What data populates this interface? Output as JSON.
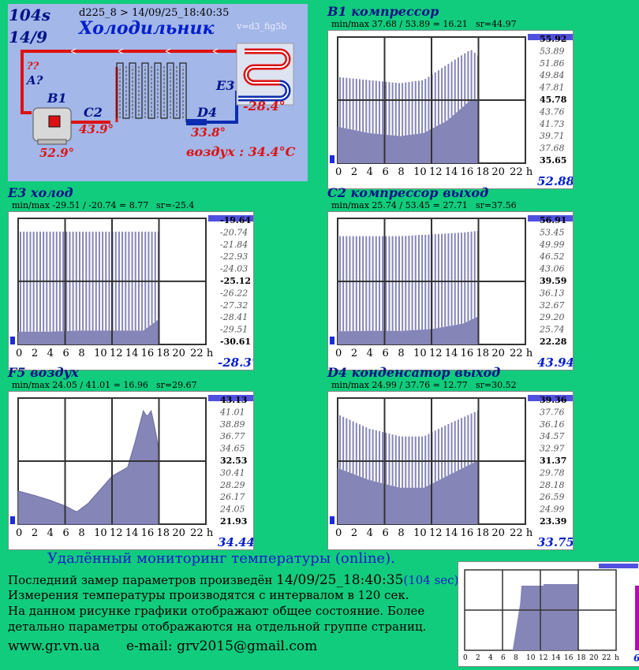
{
  "diagram": {
    "counter": "104s",
    "date": "14/9",
    "device": "d225_8  >  14/09/25_18:40:35",
    "title": "Холодильник",
    "version": "v=d3_fig5b",
    "unknown": "??",
    "label_a": "A?",
    "label_b1": "B1",
    "label_c2": "C2",
    "label_d4": "D4",
    "label_e3": "E3",
    "temp_b1": "52.9°",
    "temp_c2": "43.9°",
    "temp_d4": "33.8°",
    "temp_e3": "-28.4°",
    "air": "воздух : 34.4°C"
  },
  "cards": [
    {
      "title": "B1 компрессор",
      "minmax": "min/max   37.68 / 53.89 = 16.21",
      "sr": "sr=44.97",
      "scale": [
        "55.92",
        "53.89",
        "51.86",
        "49.84",
        "47.81",
        "45.78",
        "43.76",
        "41.73",
        "39.71",
        "37.68",
        "35.65"
      ],
      "current": "52.88",
      "current_color": "#001ecc"
    },
    {
      "title": "E3 холод",
      "minmax": "min/max   -29.51 / -20.74 = 8.77",
      "sr": "sr=-25.4",
      "scale": [
        "-19.64",
        "-20.74",
        "-21.84",
        "-22.93",
        "-24.03",
        "-25.12",
        "-26.22",
        "-27.32",
        "-28.41",
        "-29.51",
        "-30.61"
      ],
      "current": "-28.37",
      "current_color": "#001ecc"
    },
    {
      "title": "C2 компрессор выход",
      "minmax": "min/max   25.74 / 53.45 = 27.71",
      "sr": "sr=37.56",
      "scale": [
        "56.91",
        "53.45",
        "49.99",
        "46.52",
        "43.06",
        "39.59",
        "36.13",
        "32.67",
        "29.20",
        "25.74",
        "22.28"
      ],
      "current": "43.94",
      "current_color": "#001ecc"
    },
    {
      "title": "F5 воздух",
      "minmax": "min/max   24.05 / 41.01 = 16.96",
      "sr": "sr=29.67",
      "scale": [
        "43.13",
        "41.01",
        "38.89",
        "36.77",
        "34.65",
        "32.53",
        "30.41",
        "28.29",
        "26.17",
        "24.05",
        "21.93"
      ],
      "current": "34.44",
      "current_color": "#001ecc"
    },
    {
      "title": "D4 конденсатор выход",
      "minmax": "min/max   24.99 / 37.76 = 12.77",
      "sr": "sr=30.52",
      "scale": [
        "39.36",
        "37.76",
        "36.16",
        "34.57",
        "32.97",
        "31.37",
        "29.78",
        "28.18",
        "26.59",
        "24.99",
        "23.39"
      ],
      "current": "33.75",
      "current_color": "#001ecc"
    }
  ],
  "axis_labels": [
    "0",
    "2",
    "4",
    "6",
    "8",
    "10",
    "12",
    "14",
    "16",
    "18",
    "20",
    "22 h"
  ],
  "mini_axis_labels": [
    "0",
    "2",
    "4",
    "6",
    "8",
    "10",
    "12",
    "14",
    "16",
    "18",
    "20",
    "22",
    "h"
  ],
  "mini_current": "6",
  "footer": {
    "heading": "Удалённый мониторинг температуры (online).",
    "line1_a": "Последний замер параметров произведён ",
    "line1_b": "14/09/25_18:40:35",
    "line1_c": "(104 sec).",
    "line2": "Измерения температуры  производятся с интервалом в 120 сек.",
    "line3": "На данном рисунке графики отображают общее состояние. Более",
    "line4": "детально параметры отображаются на отдельной группе страниц.",
    "site": "www.gr.vn.ua",
    "email": "e-mail: grv2015@gmail.com"
  },
  "chart_data": [
    {
      "type": "area",
      "title": "B1 компрессор",
      "xlabel": "h",
      "ylim": [
        35.65,
        55.92
      ],
      "x_ticks": [
        0,
        2,
        4,
        6,
        8,
        10,
        12,
        14,
        16,
        18,
        20,
        22
      ],
      "series": [
        {
          "values": [
            {
              "x": 0,
              "y": [
                41.5,
                49.5
              ]
            },
            {
              "x": 4,
              "y": [
                40.5,
                49
              ]
            },
            {
              "x": 8,
              "y": [
                40,
                48.5
              ]
            },
            {
              "x": 11,
              "y": [
                40.5,
                49
              ]
            },
            {
              "x": 14,
              "y": [
                42.5,
                51.5
              ]
            },
            {
              "x": 17,
              "y": [
                45.8,
                53.9
              ]
            },
            {
              "x": 18,
              "y": [
                45.8,
                52.9
              ]
            }
          ]
        }
      ]
    },
    {
      "type": "area",
      "title": "E3 холод",
      "xlabel": "h",
      "ylim": [
        -30.61,
        -19.64
      ],
      "x_ticks": [
        0,
        2,
        4,
        6,
        8,
        10,
        12,
        14,
        16,
        18,
        20,
        22
      ],
      "series": [
        {
          "values": [
            {
              "x": 0,
              "y": [
                -29.5,
                -20.8
              ]
            },
            {
              "x": 4,
              "y": [
                -29.5,
                -20.8
              ]
            },
            {
              "x": 8,
              "y": [
                -29.4,
                -20.8
              ]
            },
            {
              "x": 12,
              "y": [
                -29.4,
                -20.8
              ]
            },
            {
              "x": 16,
              "y": [
                -29.4,
                -20.8
              ]
            },
            {
              "x": 18,
              "y": [
                -28.4,
                -20.8
              ]
            }
          ]
        }
      ]
    },
    {
      "type": "area",
      "title": "C2 компрессор выход",
      "xlabel": "h",
      "ylim": [
        22.28,
        56.91
      ],
      "x_ticks": [
        0,
        2,
        4,
        6,
        8,
        10,
        12,
        14,
        16,
        18,
        20,
        22
      ],
      "series": [
        {
          "values": [
            {
              "x": 0,
              "y": [
                25.9,
                52
              ]
            },
            {
              "x": 4,
              "y": [
                26,
                52
              ]
            },
            {
              "x": 8,
              "y": [
                26,
                52
              ]
            },
            {
              "x": 12,
              "y": [
                26.5,
                52.5
              ]
            },
            {
              "x": 16,
              "y": [
                28,
                53
              ]
            },
            {
              "x": 18,
              "y": [
                30,
                53.5
              ]
            }
          ]
        }
      ]
    },
    {
      "type": "area",
      "title": "F5 воздух",
      "xlabel": "h",
      "ylim": [
        21.93,
        43.13
      ],
      "x_ticks": [
        0,
        2,
        4,
        6,
        8,
        10,
        12,
        14,
        16,
        18,
        20,
        22
      ],
      "series": [
        {
          "values": [
            {
              "x": 0,
              "y": 27.5
            },
            {
              "x": 2,
              "y": 26.8
            },
            {
              "x": 4,
              "y": 26
            },
            {
              "x": 6,
              "y": 25
            },
            {
              "x": 7.5,
              "y": 24
            },
            {
              "x": 9,
              "y": 25.5
            },
            {
              "x": 12,
              "y": 30
            },
            {
              "x": 14,
              "y": 31.5
            },
            {
              "x": 15,
              "y": 36
            },
            {
              "x": 16,
              "y": 41
            },
            {
              "x": 16.5,
              "y": 40
            },
            {
              "x": 17,
              "y": 41
            },
            {
              "x": 17.5,
              "y": 38
            },
            {
              "x": 18,
              "y": 34.4
            }
          ]
        }
      ]
    },
    {
      "type": "area",
      "title": "D4 конденсатор выход",
      "xlabel": "h",
      "ylim": [
        23.39,
        39.36
      ],
      "x_ticks": [
        0,
        2,
        4,
        6,
        8,
        10,
        12,
        14,
        16,
        18,
        20,
        22
      ],
      "series": [
        {
          "values": [
            {
              "x": 0,
              "y": [
                30.5,
                37.3
              ]
            },
            {
              "x": 4,
              "y": [
                29,
                35.5
              ]
            },
            {
              "x": 8,
              "y": [
                28,
                34.5
              ]
            },
            {
              "x": 11,
              "y": [
                28,
                34.5
              ]
            },
            {
              "x": 14,
              "y": [
                29.5,
                36
              ]
            },
            {
              "x": 18,
              "y": [
                31.5,
                37.8
              ]
            }
          ]
        }
      ]
    }
  ]
}
